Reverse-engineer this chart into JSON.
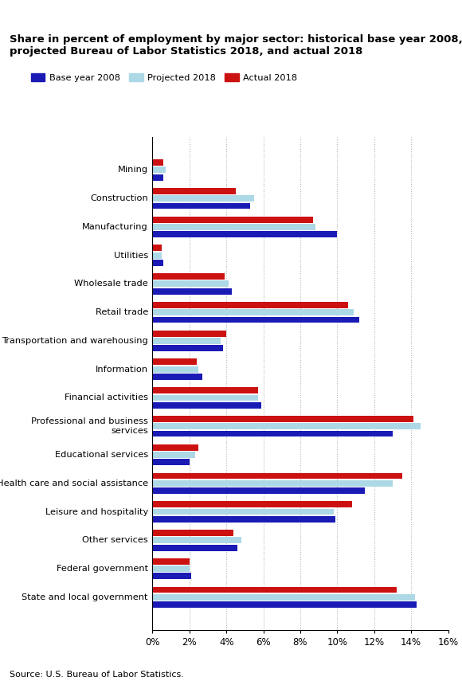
{
  "title_line1": "Share in percent of employment by major sector: historical base year 2008,",
  "title_line2": "projected Bureau of Labor Statistics 2018, and actual 2018",
  "categories": [
    "Mining",
    "Construction",
    "Manufacturing",
    "Utilities",
    "Wholesale trade",
    "Retail trade",
    "Transportation and warehousing",
    "Information",
    "Financial activities",
    "Professional and business\nservices",
    "Educational services",
    "Health care and social assistance",
    "Leisure and hospitality",
    "Other services",
    "Federal government",
    "State and local government"
  ],
  "base_year": [
    0.6,
    5.3,
    10.0,
    0.6,
    4.3,
    11.2,
    3.8,
    2.7,
    5.9,
    13.0,
    2.0,
    11.5,
    9.9,
    4.6,
    2.1,
    14.3
  ],
  "projected": [
    0.7,
    5.5,
    8.8,
    0.5,
    4.1,
    10.9,
    3.7,
    2.5,
    5.7,
    14.5,
    2.3,
    13.0,
    9.8,
    4.8,
    2.0,
    14.2
  ],
  "actual": [
    0.6,
    4.5,
    8.7,
    0.5,
    3.9,
    10.6,
    4.0,
    2.4,
    5.7,
    14.1,
    2.5,
    13.5,
    10.8,
    4.4,
    2.0,
    13.2
  ],
  "color_base": "#1a1ab5",
  "color_projected": "#add8e6",
  "color_actual": "#cc1111",
  "legend_labels": [
    "Base year 2008",
    "Projected 2018",
    "Actual 2018"
  ],
  "xlim": [
    0,
    16
  ],
  "xtick_values": [
    0,
    2,
    4,
    6,
    8,
    10,
    12,
    14,
    16
  ],
  "xtick_labels": [
    "0%",
    "2%",
    "4%",
    "6%",
    "8%",
    "10%",
    "12%",
    "14%",
    "16%"
  ],
  "source": "Source: U.S. Bureau of Labor Statistics.",
  "background_color": "#ffffff"
}
